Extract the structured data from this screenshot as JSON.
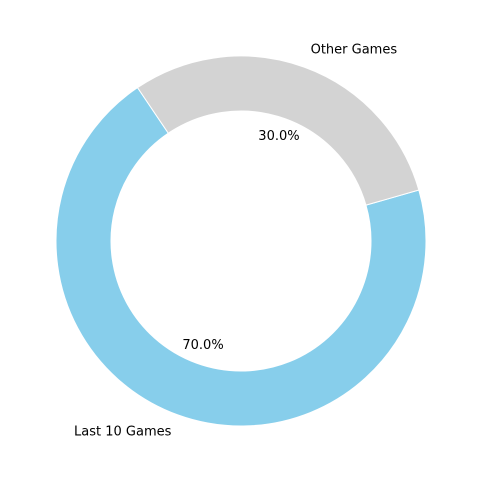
{
  "chart_data": {
    "type": "pie",
    "style": "donut",
    "slices": [
      {
        "label": "Last 10 Games",
        "value": 70.0,
        "percent_label": "70.0%",
        "color": "#87CEEB"
      },
      {
        "label": "Other Games",
        "value": 30.0,
        "percent_label": "30.0%",
        "color": "#D3D3D3"
      }
    ],
    "title": "",
    "legend": "none"
  }
}
